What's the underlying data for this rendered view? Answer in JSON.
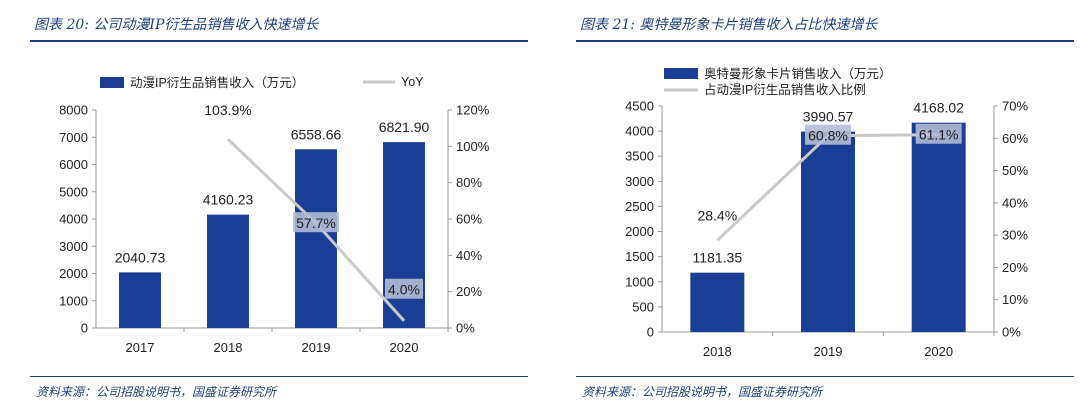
{
  "colors": {
    "bar": "#1a3d96",
    "line": "#c9c9c9",
    "title": "#1f3f7a",
    "text": "#222222",
    "label_box": "#b3bdd3"
  },
  "chart_data": [
    {
      "type": "bar",
      "title": "图表 20: 公司动漫IP衍生品销售收入快速增长",
      "source": "资料来源：公司招股说明书，国盛证券研究所",
      "categories": [
        "2017",
        "2018",
        "2019",
        "2020"
      ],
      "series": [
        {
          "name": "动漫IP衍生品销售收入（万元）",
          "kind": "bar",
          "axis": "left",
          "values": [
            2040.73,
            4160.23,
            6558.66,
            6821.9
          ],
          "labels": [
            "2040.73",
            "4160.23",
            "6558.66",
            "6821.90"
          ]
        },
        {
          "name": "YoY",
          "kind": "line",
          "axis": "right",
          "values": [
            null,
            103.9,
            57.7,
            4.0
          ],
          "labels": [
            "",
            "103.9%",
            "57.7%",
            "4.0%"
          ]
        }
      ],
      "ylim_left": [
        0,
        8000
      ],
      "yticks_left": [
        "0",
        "1000",
        "2000",
        "3000",
        "4000",
        "5000",
        "6000",
        "7000",
        "8000"
      ],
      "ylim_right": [
        0,
        120
      ],
      "yticks_right": [
        "0%",
        "20%",
        "40%",
        "60%",
        "80%",
        "100%",
        "120%"
      ],
      "legend_position": "top",
      "grid": false
    },
    {
      "type": "bar",
      "title": "图表 21: 奥特曼形象卡片销售收入占比快速增长",
      "source": "资料来源：公司招股说明书，国盛证券研究所",
      "categories": [
        "2018",
        "2019",
        "2020"
      ],
      "series": [
        {
          "name": "奥特曼形象卡片销售收入（万元）",
          "kind": "bar",
          "axis": "left",
          "values": [
            1181.35,
            3990.57,
            4168.02
          ],
          "labels": [
            "1181.35",
            "3990.57",
            "4168.02"
          ]
        },
        {
          "name": "占动漫IP衍生品销售收入比例",
          "kind": "line",
          "axis": "right",
          "values": [
            28.4,
            60.8,
            61.1
          ],
          "labels": [
            "28.4%",
            "60.8%",
            "61.1%"
          ]
        }
      ],
      "ylim_left": [
        0,
        4500
      ],
      "yticks_left": [
        "0",
        "500",
        "1000",
        "1500",
        "2000",
        "2500",
        "3000",
        "3500",
        "4000",
        "4500"
      ],
      "ylim_right": [
        0,
        70
      ],
      "yticks_right": [
        "0%",
        "10%",
        "20%",
        "30%",
        "40%",
        "50%",
        "60%",
        "70%"
      ],
      "legend_position": "top",
      "grid": false
    }
  ]
}
